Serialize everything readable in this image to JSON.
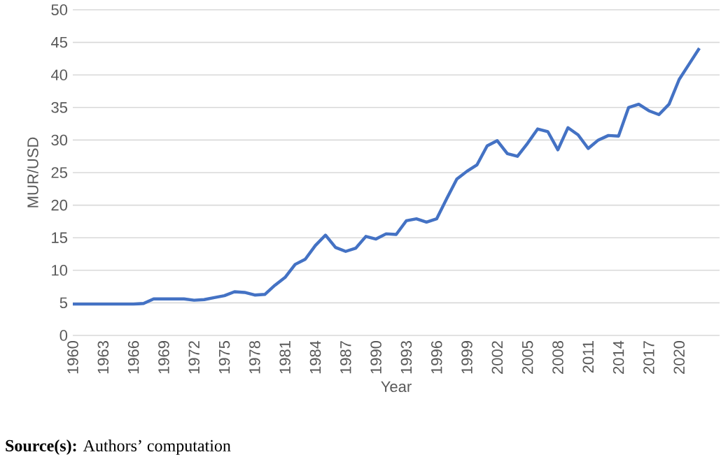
{
  "chart_data": {
    "type": "line",
    "xlabel": "Year",
    "ylabel": "MUR/USD",
    "x": [
      1960,
      1961,
      1962,
      1963,
      1964,
      1965,
      1966,
      1967,
      1968,
      1969,
      1970,
      1971,
      1972,
      1973,
      1974,
      1975,
      1976,
      1977,
      1978,
      1979,
      1980,
      1981,
      1982,
      1983,
      1984,
      1985,
      1986,
      1987,
      1988,
      1989,
      1990,
      1991,
      1992,
      1993,
      1994,
      1995,
      1996,
      1997,
      1998,
      1999,
      2000,
      2001,
      2002,
      2003,
      2004,
      2005,
      2006,
      2007,
      2008,
      2009,
      2010,
      2011,
      2012,
      2013,
      2014,
      2015,
      2016,
      2017,
      2018,
      2019,
      2020,
      2021,
      2022
    ],
    "series": [
      {
        "color": "#4472c4",
        "values": [
          4.8,
          4.8,
          4.8,
          4.8,
          4.8,
          4.8,
          4.8,
          4.9,
          5.6,
          5.6,
          5.6,
          5.6,
          5.4,
          5.5,
          5.8,
          6.1,
          6.7,
          6.6,
          6.2,
          6.3,
          7.7,
          8.9,
          10.9,
          11.7,
          13.8,
          15.4,
          13.5,
          12.9,
          13.4,
          15.2,
          14.8,
          15.6,
          15.5,
          17.6,
          17.9,
          17.4,
          17.9,
          21.0,
          24.0,
          25.2,
          26.2,
          29.1,
          29.9,
          27.9,
          27.5,
          29.5,
          31.7,
          31.3,
          28.5,
          31.9,
          30.8,
          28.7,
          30.0,
          30.7,
          30.6,
          35.0,
          35.5,
          34.5,
          33.9,
          35.5,
          39.3,
          41.7,
          44.1
        ]
      }
    ],
    "xlim": [
      1960,
      2024
    ],
    "xticks": [
      1960,
      1963,
      1966,
      1969,
      1972,
      1975,
      1978,
      1981,
      1984,
      1987,
      1990,
      1993,
      1996,
      1999,
      2002,
      2005,
      2008,
      2011,
      2014,
      2017,
      2020
    ],
    "ylim": [
      0,
      50
    ],
    "yticks": [
      0,
      5,
      10,
      15,
      20,
      25,
      30,
      35,
      40,
      45,
      50
    ],
    "grid": "y",
    "marker": "none",
    "line_style": "solid",
    "annotations": [
      "**Source(s):** Authors’ computation"
    ]
  }
}
